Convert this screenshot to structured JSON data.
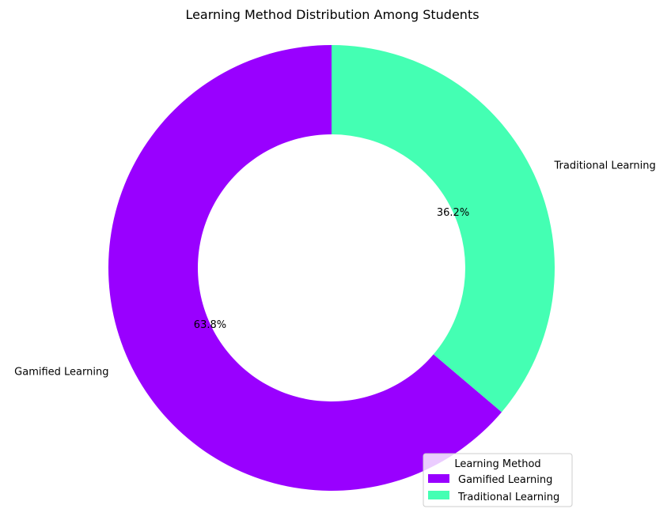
{
  "chart_data": {
    "type": "pie",
    "donut": true,
    "title": "Learning Method Distribution Among Students",
    "categories": [
      "Gamified Learning",
      "Traditional Learning"
    ],
    "values": [
      63.8,
      36.2
    ],
    "percent_labels": [
      "63.8%",
      "36.2%"
    ],
    "colors": [
      "#9900ff",
      "#44ffb3"
    ],
    "start_angle_deg": 90,
    "direction": "counterclockwise",
    "legend": {
      "title": "Learning Method",
      "placement": "lower-right",
      "entries": [
        "Gamified Learning",
        "Traditional Learning"
      ]
    }
  }
}
